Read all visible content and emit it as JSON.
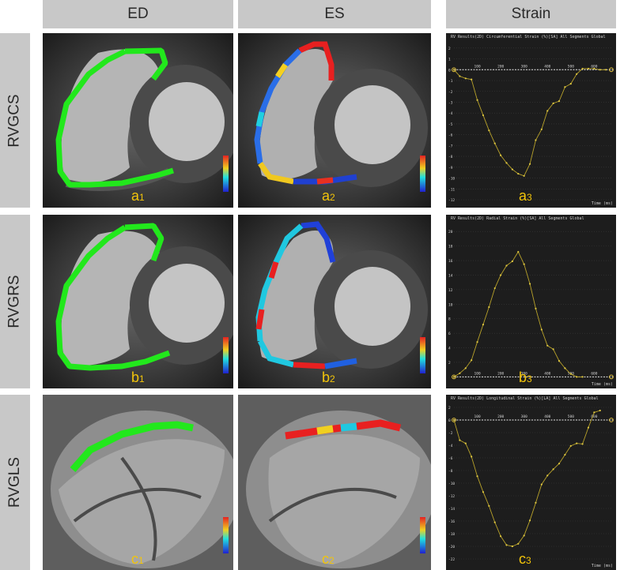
{
  "headers": {
    "ed": "ED",
    "es": "ES",
    "strain": "Strain"
  },
  "rows": [
    {
      "label": "RVGCS",
      "ed_letter": "a",
      "ed_num": "1",
      "es_letter": "a",
      "es_num": "2",
      "strain_letter": "a",
      "strain_num": "3",
      "plot_title": "RV Results(2D) Circumferential Strain (%)[SA] All Segments Global"
    },
    {
      "label": "RVGRS",
      "ed_letter": "b",
      "ed_num": "1",
      "es_letter": "b",
      "es_num": "2",
      "strain_letter": "b",
      "strain_num": "3",
      "plot_title": "RV Results(2D) Radial Strain (%)[SA] All Segments Global"
    },
    {
      "label": "RVGLS",
      "ed_letter": "c",
      "ed_num": "1",
      "es_letter": "c",
      "es_num": "2",
      "strain_letter": "c",
      "strain_num": "3",
      "plot_title": "RV Results(2D) Longitudinal Strain (%)[LA] All Segments Global"
    }
  ],
  "x_axis_label": "Time (ms)",
  "colors": {
    "contour_green": "#22e81c",
    "curve": "#b8a22a",
    "label_yellow": "#f2c40a",
    "plot_bg": "#1d1d1d",
    "header_bg": "#c8c8c8"
  },
  "chart_data": [
    {
      "type": "line",
      "title": "RV Results(2D) Circumferential Strain (%)[SA] All Segments Global",
      "xlabel": "Time (ms)",
      "ylabel": "",
      "xlim": [
        0,
        680
      ],
      "ylim": [
        -12,
        2.5
      ],
      "x_ticks": [
        100,
        200,
        300,
        400,
        500,
        600
      ],
      "y_ticks": [
        2,
        1,
        0,
        -1,
        -2,
        -3,
        -4,
        -5,
        -6,
        -7,
        -8,
        -9,
        -10,
        -11,
        -12
      ],
      "x": [
        0,
        25,
        50,
        75,
        100,
        125,
        150,
        175,
        200,
        225,
        250,
        275,
        300,
        325,
        350,
        375,
        400,
        425,
        450,
        475,
        500,
        525,
        550,
        575,
        600,
        625,
        650
      ],
      "y": [
        0,
        -0.6,
        -0.8,
        -0.9,
        -2.8,
        -4.2,
        -5.6,
        -6.8,
        -7.9,
        -8.6,
        -9.2,
        -9.6,
        -9.8,
        -8.7,
        -6.5,
        -5.5,
        -3.8,
        -3.1,
        -2.9,
        -1.6,
        -1.3,
        -0.4,
        0.1,
        0.1,
        0.1,
        0,
        0
      ]
    },
    {
      "type": "line",
      "title": "RV Results(2D) Radial Strain (%)[SA] All Segments Global",
      "xlabel": "Time (ms)",
      "ylabel": "",
      "xlim": [
        0,
        680
      ],
      "ylim": [
        -0.5,
        21
      ],
      "x_ticks": [
        100,
        200,
        300,
        400,
        500,
        600
      ],
      "y_ticks": [
        20,
        18,
        16,
        14,
        12,
        10,
        8,
        6,
        4,
        2
      ],
      "x": [
        0,
        25,
        50,
        75,
        100,
        125,
        150,
        175,
        200,
        225,
        250,
        275,
        300,
        325,
        350,
        375,
        400,
        425,
        450,
        475,
        500,
        525,
        550
      ],
      "y": [
        0,
        0.5,
        1.2,
        2.3,
        4.8,
        7.2,
        9.6,
        12.2,
        14.0,
        15.3,
        15.9,
        17.2,
        15.5,
        12.8,
        9.4,
        6.5,
        4.3,
        3.8,
        2.2,
        1.2,
        0.4,
        0,
        0
      ]
    },
    {
      "type": "line",
      "title": "RV Results(2D) Longitudinal Strain (%)[LA] All Segments Global",
      "xlabel": "Time (ms)",
      "ylabel": "",
      "xlim": [
        0,
        680
      ],
      "ylim": [
        -22.5,
        2.5
      ],
      "x_ticks": [
        100,
        200,
        300,
        400,
        500,
        600
      ],
      "y_ticks": [
        2,
        0,
        -2,
        -4,
        -6,
        -8,
        -10,
        -12,
        -14,
        -16,
        -18,
        -20,
        -22
      ],
      "x": [
        0,
        25,
        50,
        75,
        100,
        125,
        150,
        175,
        200,
        225,
        250,
        275,
        300,
        325,
        350,
        375,
        400,
        425,
        450,
        475,
        500,
        525,
        550,
        575,
        600,
        625
      ],
      "y": [
        0,
        -3.2,
        -3.7,
        -5.8,
        -8.9,
        -11.4,
        -13.6,
        -16.2,
        -18.4,
        -19.8,
        -20.0,
        -19.6,
        -18.3,
        -15.9,
        -13.1,
        -10.2,
        -8.8,
        -7.8,
        -6.9,
        -5.5,
        -4.1,
        -3.7,
        -3.8,
        -1.2,
        1.2,
        1.5
      ]
    }
  ]
}
